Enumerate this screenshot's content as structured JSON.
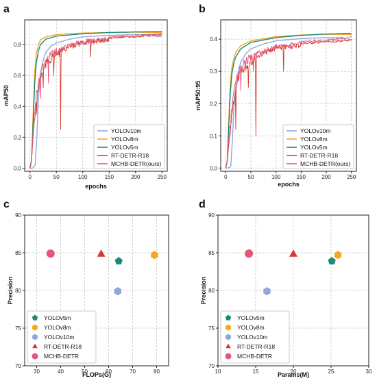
{
  "colors": {
    "YOLOv10m": "#8fa8dc",
    "YOLOv8m": "#f5a623",
    "YOLOv5m": "#1d8a7a",
    "RT-DETR-R18": "#d43a2f",
    "MCHB-DETR(ours)": "#e4577a",
    "MCHB-DETR": "#e4577a"
  },
  "chart_data": [
    {
      "id": "a",
      "panel_label": "a",
      "type": "line",
      "xlabel": "epochs",
      "ylabel": "mAP50",
      "xlim": [
        -10,
        260
      ],
      "ylim": [
        -0.02,
        0.96
      ],
      "xticks": [
        0,
        50,
        100,
        150,
        200,
        250
      ],
      "yticks": [
        0.0,
        0.2,
        0.4,
        0.6,
        0.8
      ],
      "ytick_labels": [
        "0.0",
        "0.2",
        "0.4",
        "0.6",
        "0.8"
      ],
      "grid": true,
      "legend_position": "lower-right",
      "series": [
        {
          "name": "YOLOv10m",
          "kind": "smooth",
          "points": [
            [
              0,
              0
            ],
            [
              5,
              0
            ],
            [
              10,
              0.02
            ],
            [
              13,
              0.2
            ],
            [
              16,
              0.45
            ],
            [
              20,
              0.62
            ],
            [
              25,
              0.7
            ],
            [
              30,
              0.75
            ],
            [
              40,
              0.79
            ],
            [
              50,
              0.81
            ],
            [
              75,
              0.835
            ],
            [
              100,
              0.85
            ],
            [
              150,
              0.86
            ],
            [
              200,
              0.865
            ],
            [
              235,
              0.865
            ],
            [
              240,
              0.85
            ],
            [
              250,
              0.855
            ]
          ]
        },
        {
          "name": "YOLOv8m",
          "kind": "smooth",
          "points": [
            [
              0,
              0
            ],
            [
              3,
              0.05
            ],
            [
              6,
              0.35
            ],
            [
              9,
              0.62
            ],
            [
              12,
              0.74
            ],
            [
              16,
              0.8
            ],
            [
              20,
              0.83
            ],
            [
              30,
              0.85
            ],
            [
              50,
              0.865
            ],
            [
              100,
              0.875
            ],
            [
              150,
              0.878
            ],
            [
              200,
              0.88
            ],
            [
              250,
              0.878
            ]
          ]
        },
        {
          "name": "YOLOv5m",
          "kind": "smooth",
          "points": [
            [
              0,
              0
            ],
            [
              3,
              0.05
            ],
            [
              6,
              0.3
            ],
            [
              9,
              0.55
            ],
            [
              12,
              0.68
            ],
            [
              16,
              0.76
            ],
            [
              20,
              0.8
            ],
            [
              30,
              0.835
            ],
            [
              50,
              0.855
            ],
            [
              100,
              0.87
            ],
            [
              150,
              0.878
            ],
            [
              200,
              0.882
            ],
            [
              250,
              0.884
            ]
          ]
        },
        {
          "name": "RT-DETR-R18",
          "kind": "noisy",
          "points": [
            [
              0,
              0
            ],
            [
              3,
              0.05
            ],
            [
              6,
              0.2
            ],
            [
              9,
              0.35
            ],
            [
              12,
              0.45
            ],
            [
              16,
              0.55
            ],
            [
              20,
              0.62
            ],
            [
              25,
              0.66
            ],
            [
              30,
              0.7
            ],
            [
              40,
              0.74
            ],
            [
              50,
              0.77
            ],
            [
              75,
              0.8
            ],
            [
              100,
              0.83
            ],
            [
              150,
              0.85
            ],
            [
              200,
              0.86
            ],
            [
              250,
              0.87
            ]
          ],
          "dips": [
            [
              58,
              0.25
            ],
            [
              45,
              0.6
            ],
            [
              13,
              0.35
            ],
            [
              115,
              0.72
            ],
            [
              25,
              0.52
            ]
          ]
        },
        {
          "name": "MCHB-DETR(ours)",
          "kind": "noisy",
          "points": [
            [
              0,
              0
            ],
            [
              3,
              0.05
            ],
            [
              6,
              0.25
            ],
            [
              9,
              0.4
            ],
            [
              12,
              0.5
            ],
            [
              16,
              0.58
            ],
            [
              20,
              0.64
            ],
            [
              25,
              0.68
            ],
            [
              30,
              0.72
            ],
            [
              40,
              0.76
            ],
            [
              50,
              0.78
            ],
            [
              75,
              0.81
            ],
            [
              100,
              0.835
            ],
            [
              150,
              0.855
            ],
            [
              200,
              0.865
            ],
            [
              250,
              0.875
            ]
          ],
          "dips": [
            [
              35,
              0.55
            ],
            [
              20,
              0.45
            ]
          ]
        }
      ]
    },
    {
      "id": "b",
      "panel_label": "b",
      "type": "line",
      "xlabel": "epochs",
      "ylabel": "mAP50:95",
      "xlim": [
        -10,
        260
      ],
      "ylim": [
        -0.01,
        0.46
      ],
      "xticks": [
        0,
        50,
        100,
        150,
        200,
        250
      ],
      "yticks": [
        0.0,
        0.1,
        0.2,
        0.3,
        0.4
      ],
      "ytick_labels": [
        "0.0",
        "0.1",
        "0.2",
        "0.3",
        "0.4"
      ],
      "grid": true,
      "legend_position": "lower-right",
      "series": [
        {
          "name": "YOLOv10m",
          "kind": "smooth",
          "points": [
            [
              0,
              0
            ],
            [
              5,
              0
            ],
            [
              10,
              0.005
            ],
            [
              13,
              0.08
            ],
            [
              16,
              0.18
            ],
            [
              20,
              0.26
            ],
            [
              25,
              0.3
            ],
            [
              30,
              0.33
            ],
            [
              40,
              0.355
            ],
            [
              50,
              0.37
            ],
            [
              75,
              0.385
            ],
            [
              100,
              0.395
            ],
            [
              150,
              0.402
            ],
            [
              200,
              0.405
            ],
            [
              235,
              0.405
            ],
            [
              240,
              0.395
            ],
            [
              250,
              0.398
            ]
          ]
        },
        {
          "name": "YOLOv8m",
          "kind": "smooth",
          "points": [
            [
              0,
              0
            ],
            [
              3,
              0.02
            ],
            [
              6,
              0.15
            ],
            [
              9,
              0.26
            ],
            [
              12,
              0.31
            ],
            [
              16,
              0.34
            ],
            [
              20,
              0.36
            ],
            [
              30,
              0.38
            ],
            [
              50,
              0.395
            ],
            [
              100,
              0.408
            ],
            [
              150,
              0.413
            ],
            [
              200,
              0.415
            ],
            [
              250,
              0.415
            ]
          ]
        },
        {
          "name": "YOLOv5m",
          "kind": "smooth",
          "points": [
            [
              0,
              0
            ],
            [
              3,
              0.02
            ],
            [
              6,
              0.13
            ],
            [
              9,
              0.23
            ],
            [
              12,
              0.29
            ],
            [
              16,
              0.325
            ],
            [
              20,
              0.345
            ],
            [
              30,
              0.37
            ],
            [
              50,
              0.39
            ],
            [
              100,
              0.405
            ],
            [
              150,
              0.412
            ],
            [
              200,
              0.416
            ],
            [
              250,
              0.418
            ]
          ]
        },
        {
          "name": "RT-DETR-R18",
          "kind": "noisy",
          "points": [
            [
              0,
              0
            ],
            [
              3,
              0.02
            ],
            [
              6,
              0.07
            ],
            [
              9,
              0.12
            ],
            [
              12,
              0.17
            ],
            [
              16,
              0.22
            ],
            [
              20,
              0.26
            ],
            [
              25,
              0.29
            ],
            [
              30,
              0.31
            ],
            [
              40,
              0.33
            ],
            [
              50,
              0.345
            ],
            [
              75,
              0.365
            ],
            [
              100,
              0.38
            ],
            [
              150,
              0.39
            ],
            [
              200,
              0.395
            ],
            [
              250,
              0.4
            ]
          ],
          "dips": [
            [
              60,
              0.1
            ],
            [
              20,
              0.12
            ],
            [
              45,
              0.25
            ],
            [
              115,
              0.3
            ]
          ]
        },
        {
          "name": "MCHB-DETR(ours)",
          "kind": "noisy",
          "points": [
            [
              0,
              0
            ],
            [
              3,
              0.02
            ],
            [
              6,
              0.09
            ],
            [
              9,
              0.15
            ],
            [
              12,
              0.2
            ],
            [
              16,
              0.25
            ],
            [
              20,
              0.28
            ],
            [
              25,
              0.31
            ],
            [
              30,
              0.325
            ],
            [
              40,
              0.345
            ],
            [
              50,
              0.355
            ],
            [
              75,
              0.37
            ],
            [
              100,
              0.385
            ],
            [
              150,
              0.395
            ],
            [
              200,
              0.4
            ],
            [
              250,
              0.41
            ]
          ],
          "dips": [
            [
              30,
              0.24
            ],
            [
              55,
              0.3
            ]
          ]
        }
      ]
    },
    {
      "id": "c",
      "panel_label": "c",
      "type": "scatter",
      "xlabel": "FLOPs(G)",
      "ylabel": "Precision",
      "xlim": [
        25,
        85
      ],
      "ylim": [
        70,
        90
      ],
      "xticks": [
        30,
        40,
        50,
        60,
        70,
        80
      ],
      "yticks": [
        70,
        75,
        80,
        85,
        90
      ],
      "ytick_labels": [
        "70",
        "75",
        "80",
        "85",
        "90"
      ],
      "grid": true,
      "legend_position": "lower-left",
      "points": [
        {
          "name": "YOLOv5m",
          "marker": "pentagon",
          "x": 64.2,
          "y": 83.9
        },
        {
          "name": "YOLOv8m",
          "marker": "hexagon",
          "x": 79.1,
          "y": 84.7
        },
        {
          "name": "YOLOv10m",
          "marker": "hexagon",
          "x": 63.8,
          "y": 79.9
        },
        {
          "name": "RT-DETR-R18",
          "marker": "triangle",
          "x": 56.9,
          "y": 84.8
        },
        {
          "name": "MCHB-DETR",
          "marker": "circle",
          "x": 35.8,
          "y": 84.9
        }
      ]
    },
    {
      "id": "d",
      "panel_label": "d",
      "type": "scatter",
      "xlabel": "Params(M)",
      "ylabel": "Precision",
      "xlim": [
        10,
        30
      ],
      "ylim": [
        70,
        90
      ],
      "xticks": [
        10,
        15,
        20,
        25,
        30
      ],
      "yticks": [
        70,
        75,
        80,
        85,
        90
      ],
      "ytick_labels": [
        "70",
        "75",
        "80",
        "85",
        "90"
      ],
      "grid": true,
      "legend_position": "lower-left",
      "points": [
        {
          "name": "YOLOv5m",
          "marker": "pentagon",
          "x": 25.1,
          "y": 83.9
        },
        {
          "name": "YOLOv8m",
          "marker": "hexagon",
          "x": 25.9,
          "y": 84.7
        },
        {
          "name": "YOLOv10m",
          "marker": "hexagon",
          "x": 16.5,
          "y": 79.9
        },
        {
          "name": "RT-DETR-R18",
          "marker": "triangle",
          "x": 20.0,
          "y": 84.8
        },
        {
          "name": "MCHB-DETR",
          "marker": "circle",
          "x": 14.1,
          "y": 84.9
        }
      ]
    }
  ]
}
